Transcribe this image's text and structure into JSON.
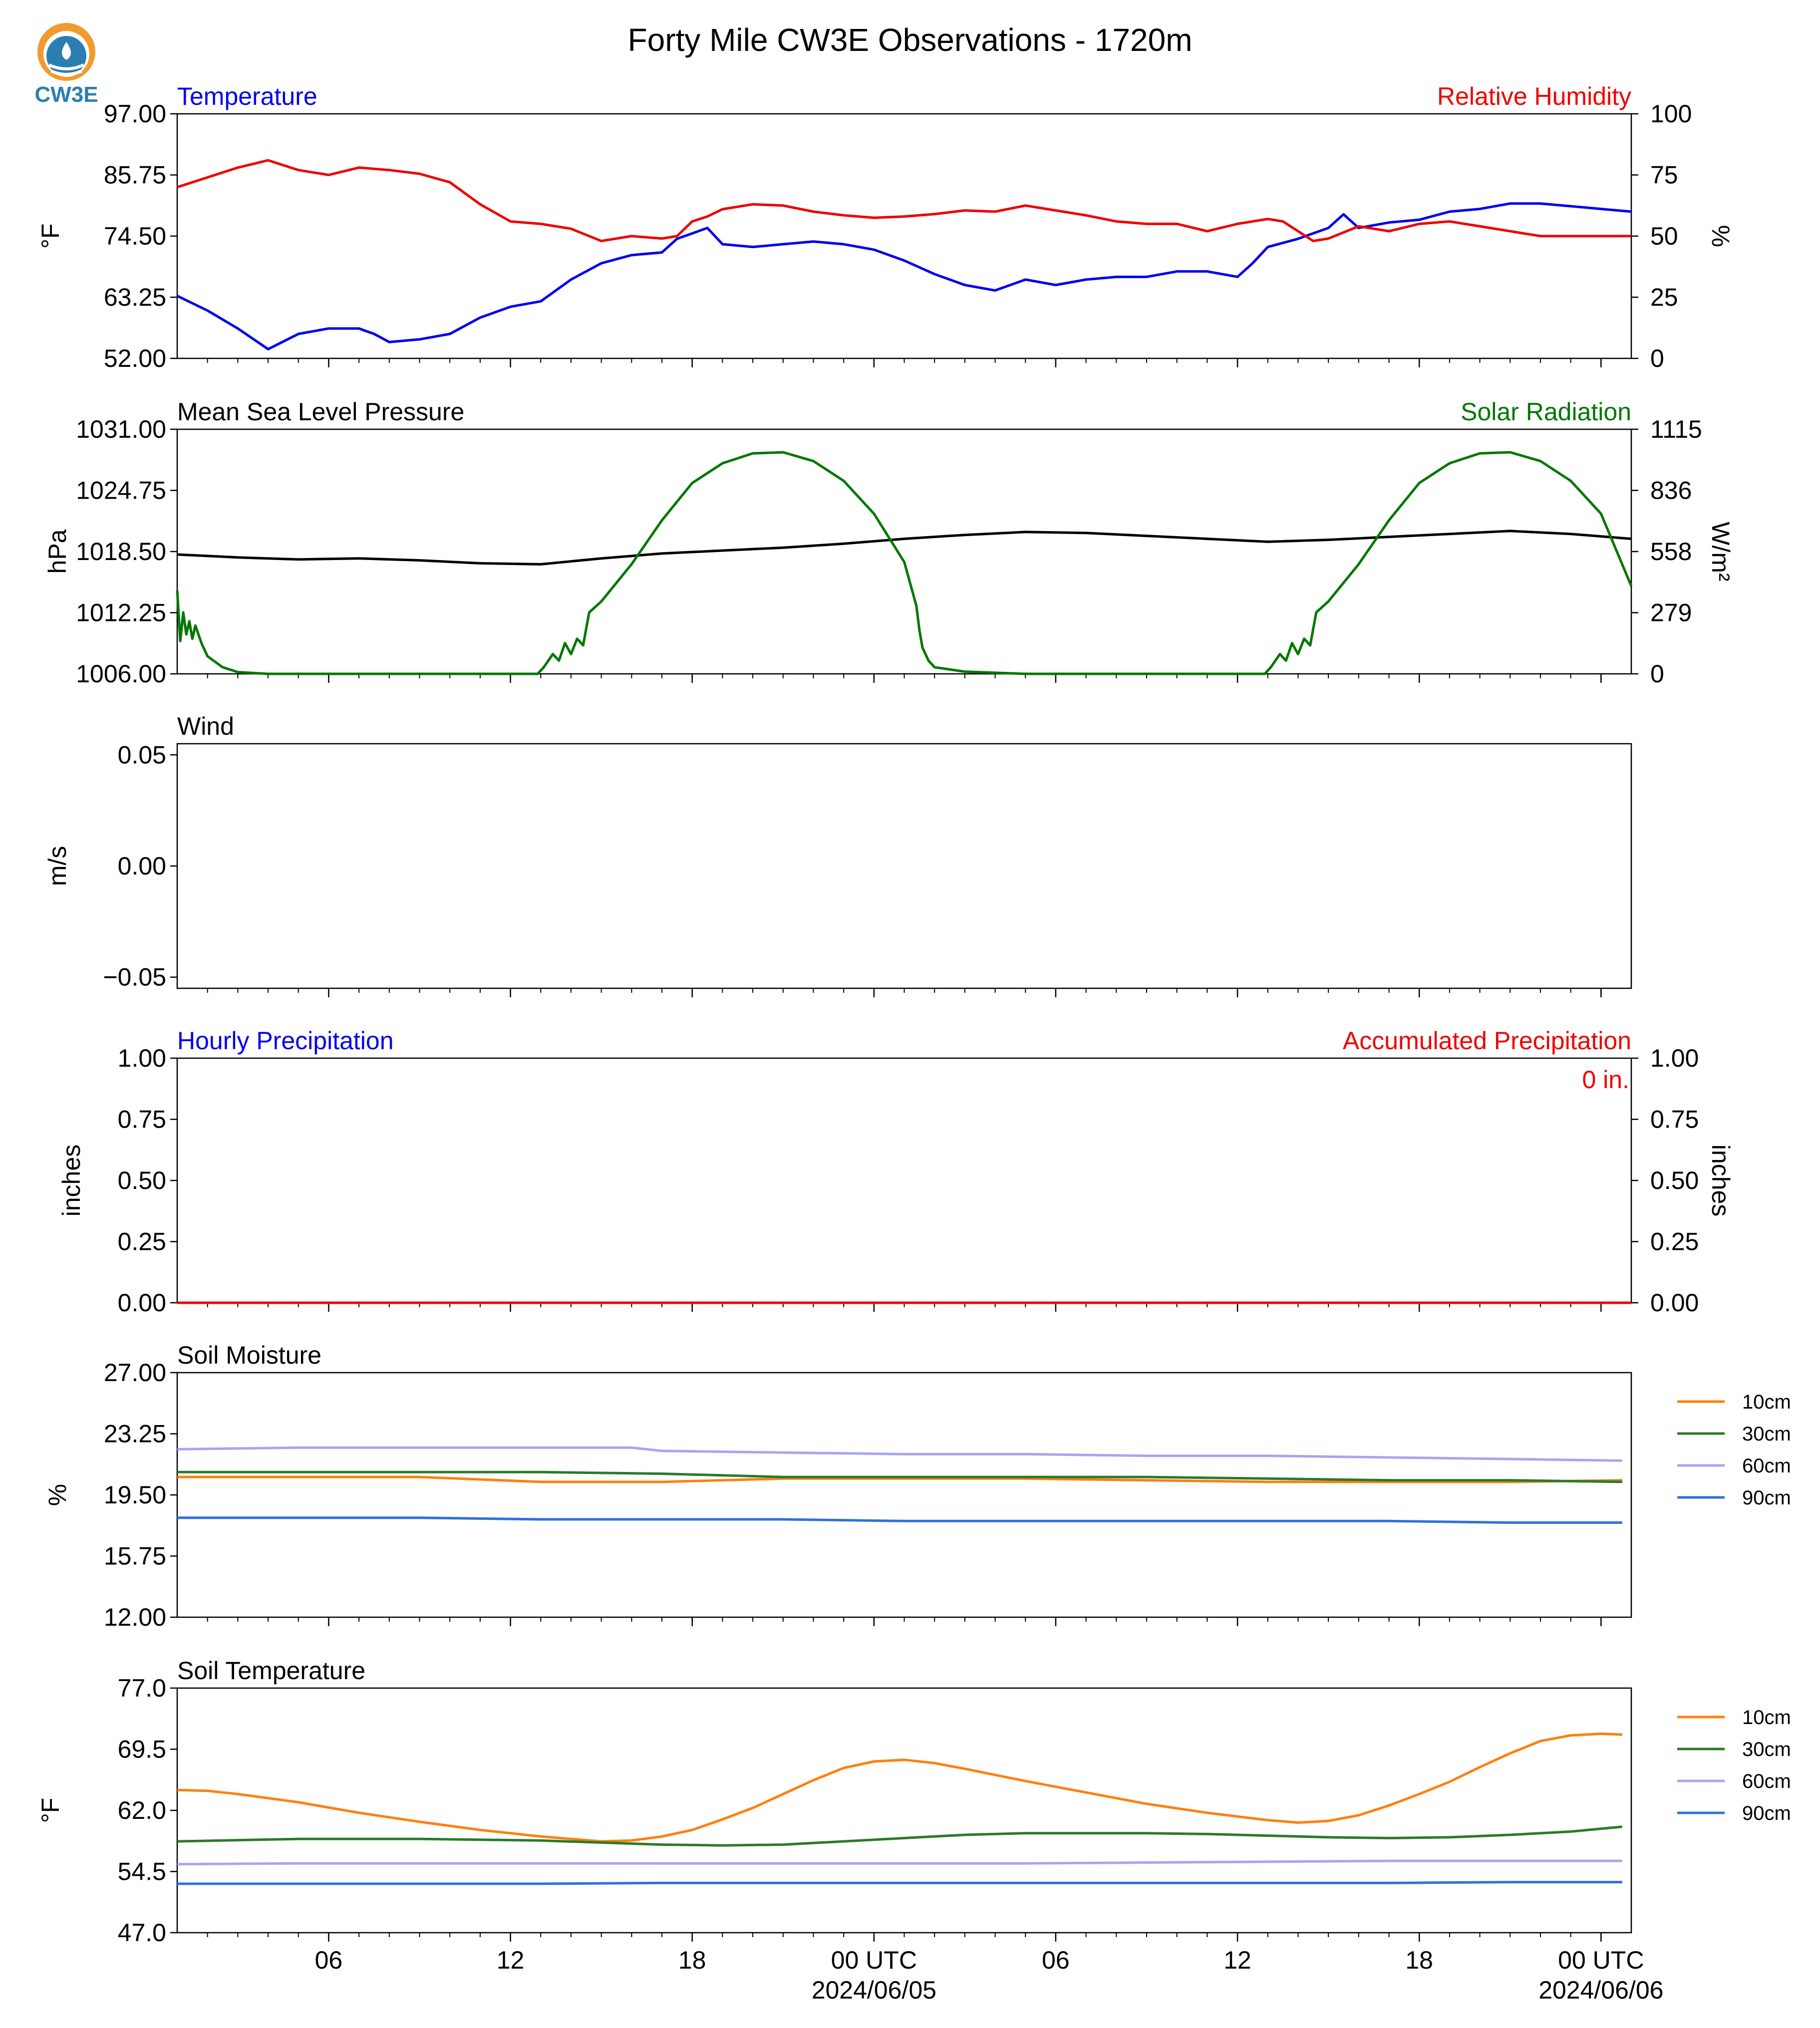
{
  "title": "Forty Mile CW3E Observations - 1720m",
  "logo": {
    "text": "CW3E",
    "icon": "cw3e-logo-icon",
    "colors": {
      "orange": "#f29a2e",
      "blue": "#2a7fb0"
    }
  },
  "colors": {
    "blue": "#0000ee",
    "red": "#ee0000",
    "green": "#007700",
    "black": "#000000",
    "soil_10cm": "#ff7f0e",
    "soil_30cm": "#2a7a2a",
    "soil_60cm": "#a6a6f0",
    "soil_90cm": "#2f6fe0"
  },
  "x_axis": {
    "unit": "hours",
    "range": [
      0,
      48
    ],
    "ticks": [
      {
        "x": 5,
        "label": "06",
        "date": ""
      },
      {
        "x": 11,
        "label": "12",
        "date": ""
      },
      {
        "x": 17,
        "label": "18",
        "date": ""
      },
      {
        "x": 23,
        "label": "00 UTC",
        "date": "2024/06/05"
      },
      {
        "x": 29,
        "label": "06",
        "date": ""
      },
      {
        "x": 35,
        "label": "12",
        "date": ""
      },
      {
        "x": 41,
        "label": "18",
        "date": ""
      },
      {
        "x": 47,
        "label": "00 UTC",
        "date": "2024/06/06"
      }
    ],
    "minor_step": 1
  },
  "chart_data": [
    {
      "type": "line",
      "title_left": "Temperature",
      "title_right": "Relative Humidity",
      "ylabel": "°F",
      "ylabel_right": "%",
      "ylim": [
        52,
        97
      ],
      "ylim_right": [
        0,
        100
      ],
      "yticks": [
        "52.00",
        "63.25",
        "74.50",
        "85.75",
        "97.00"
      ],
      "yticks_right": [
        "0",
        "25",
        "50",
        "75",
        "100"
      ],
      "series": [
        {
          "name": "Temperature",
          "axis": "left",
          "color": "blue",
          "x": [
            0,
            1,
            2,
            3,
            4,
            5,
            6,
            6.5,
            7,
            8,
            9,
            10,
            11,
            12,
            13,
            14,
            15,
            16,
            16.5,
            17,
            17.5,
            18,
            19,
            20,
            21,
            22,
            23,
            24,
            25,
            26,
            27,
            28,
            29,
            30,
            31,
            32,
            33,
            34,
            35,
            35.5,
            36,
            37,
            38,
            38.5,
            39,
            40,
            41,
            42,
            43,
            44,
            45,
            46,
            47,
            48
          ],
          "y": [
            63.5,
            60.8,
            57.5,
            53.7,
            56.5,
            57.5,
            57.5,
            56.5,
            55,
            55.5,
            56.5,
            59.5,
            61.5,
            62.5,
            66.5,
            69.5,
            71,
            71.5,
            74,
            75,
            76,
            73,
            72.5,
            73,
            73.5,
            73,
            72,
            70,
            67.5,
            65.5,
            64.5,
            66.5,
            65.5,
            66.5,
            67,
            67,
            68,
            68,
            67,
            69.5,
            72.5,
            74,
            76,
            78.5,
            76,
            77,
            77.5,
            79,
            79.5,
            80.5,
            80.5,
            80,
            79.5,
            79
          ]
        },
        {
          "name": "Relative Humidity",
          "axis": "right",
          "color": "red",
          "x": [
            0,
            1,
            2,
            3,
            4,
            5,
            6,
            7,
            8,
            9,
            10,
            11,
            12,
            13,
            14,
            15,
            16,
            16.5,
            17,
            17.5,
            18,
            19,
            20,
            21,
            22,
            23,
            24,
            25,
            26,
            27,
            28,
            29,
            30,
            31,
            32,
            33,
            34,
            35,
            36,
            36.5,
            37,
            37.5,
            38,
            39,
            40,
            41,
            42,
            43,
            44,
            45,
            46,
            47,
            48
          ],
          "y": [
            70,
            74,
            78,
            81,
            77,
            75,
            78,
            77,
            75.5,
            72,
            63,
            56,
            55,
            53,
            48,
            50,
            49,
            50,
            56,
            58,
            61,
            63,
            62.5,
            60,
            58.5,
            57.5,
            58,
            59,
            60.5,
            60,
            62.5,
            60.5,
            58.5,
            56,
            55,
            55,
            52,
            55,
            57,
            56,
            52,
            48,
            49,
            54,
            52,
            55,
            56,
            54,
            52,
            50,
            50,
            50,
            50
          ]
        }
      ]
    },
    {
      "type": "line",
      "title_left": "Mean Sea Level Pressure",
      "title_right": "Solar Radiation",
      "ylabel": "hPa",
      "ylabel_right": "W/m²",
      "ylim": [
        1006,
        1031
      ],
      "ylim_right": [
        0,
        1115
      ],
      "yticks": [
        "1006.00",
        "1012.25",
        "1018.50",
        "1024.75",
        "1031.00"
      ],
      "yticks_right": [
        "0",
        "279",
        "558",
        "836",
        "1115"
      ],
      "series": [
        {
          "name": "Mean Sea Level Pressure",
          "axis": "left",
          "color": "black",
          "x": [
            0,
            2,
            4,
            6,
            8,
            10,
            12,
            14,
            16,
            18,
            20,
            22,
            24,
            26,
            28,
            30,
            32,
            34,
            36,
            38,
            40,
            42,
            44,
            46,
            48
          ],
          "y": [
            1018.2,
            1017.9,
            1017.7,
            1017.8,
            1017.6,
            1017.3,
            1017.2,
            1017.8,
            1018.3,
            1018.6,
            1018.9,
            1019.3,
            1019.8,
            1020.2,
            1020.5,
            1020.4,
            1020.1,
            1019.8,
            1019.5,
            1019.7,
            1020,
            1020.3,
            1020.6,
            1020.3,
            1019.8
          ]
        },
        {
          "name": "Solar Radiation",
          "axis": "right",
          "color": "green",
          "x": [
            0,
            0.1,
            0.2,
            0.3,
            0.4,
            0.5,
            0.6,
            0.8,
            1,
            1.2,
            1.5,
            2,
            3,
            4,
            5,
            6,
            8,
            10,
            11.9,
            12.1,
            12.4,
            12.6,
            12.8,
            13,
            13.2,
            13.4,
            13.6,
            14,
            15,
            16,
            17,
            18,
            19,
            20,
            21,
            22,
            23,
            24,
            24.4,
            24.5,
            24.6,
            24.8,
            25,
            26,
            28,
            30,
            32,
            34,
            35.9,
            36.1,
            36.4,
            36.6,
            36.8,
            37,
            37.2,
            37.4,
            37.6,
            38,
            39,
            40,
            41,
            42,
            43,
            44,
            45,
            46,
            47,
            48
          ],
          "y": [
            380,
            150,
            280,
            180,
            240,
            160,
            220,
            140,
            80,
            60,
            30,
            8,
            0,
            0,
            0,
            0,
            0,
            0,
            0,
            30,
            90,
            60,
            140,
            90,
            160,
            130,
            280,
            330,
            500,
            700,
            870,
            960,
            1005,
            1010,
            970,
            880,
            730,
            510,
            310,
            200,
            120,
            60,
            30,
            10,
            0,
            0,
            0,
            0,
            0,
            30,
            90,
            60,
            140,
            90,
            160,
            130,
            280,
            330,
            500,
            700,
            870,
            960,
            1005,
            1010,
            970,
            880,
            730,
            400
          ]
        }
      ]
    },
    {
      "type": "line",
      "title_left": "Wind",
      "ylabel": "m/s",
      "ylim": [
        -0.055,
        0.055
      ],
      "yticks": [
        "−0.05",
        "0.00",
        "0.05"
      ],
      "ytick_values": [
        -0.05,
        0,
        0.05
      ],
      "series": []
    },
    {
      "type": "line",
      "title_left": "Hourly Precipitation",
      "title_right": "Accumulated Precipitation",
      "ylabel": "inches",
      "ylabel_right": "inches",
      "ylim": [
        0,
        1
      ],
      "ylim_right": [
        0,
        1
      ],
      "yticks": [
        "0.00",
        "0.25",
        "0.50",
        "0.75",
        "1.00"
      ],
      "yticks_right": [
        "0.00",
        "0.25",
        "0.50",
        "0.75",
        "1.00"
      ],
      "annotation": "0 in.",
      "series": [
        {
          "name": "Accumulated Precipitation",
          "axis": "right",
          "color": "red",
          "x": [
            0,
            48
          ],
          "y": [
            0,
            0
          ]
        }
      ]
    },
    {
      "type": "line",
      "title_left": "Soil Moisture",
      "ylabel": "%",
      "ylim": [
        12,
        27
      ],
      "yticks": [
        "12.00",
        "15.75",
        "19.50",
        "23.25",
        "27.00"
      ],
      "legend": [
        "10cm",
        "30cm",
        "60cm",
        "90cm"
      ],
      "series": [
        {
          "name": "10cm",
          "color": "soil_10cm",
          "x": [
            0,
            8,
            12,
            16,
            20,
            24,
            28,
            32,
            36,
            40,
            44,
            47.7
          ],
          "y": [
            20.6,
            20.6,
            20.3,
            20.3,
            20.5,
            20.5,
            20.5,
            20.4,
            20.3,
            20.3,
            20.3,
            20.4
          ]
        },
        {
          "name": "30cm",
          "color": "soil_30cm",
          "x": [
            0,
            8,
            12,
            16,
            20,
            24,
            28,
            32,
            36,
            40,
            44,
            47.7
          ],
          "y": [
            20.9,
            20.9,
            20.9,
            20.8,
            20.6,
            20.6,
            20.6,
            20.6,
            20.5,
            20.4,
            20.4,
            20.3
          ]
        },
        {
          "name": "60cm",
          "color": "soil_60cm",
          "x": [
            0,
            4,
            8,
            12,
            15,
            16,
            20,
            24,
            28,
            32,
            36,
            40,
            44,
            47.7
          ],
          "y": [
            22.3,
            22.4,
            22.4,
            22.4,
            22.4,
            22.2,
            22.1,
            22.0,
            22.0,
            21.9,
            21.9,
            21.8,
            21.7,
            21.6
          ]
        },
        {
          "name": "90cm",
          "color": "soil_90cm",
          "x": [
            0,
            4,
            8,
            12,
            16,
            20,
            24,
            28,
            32,
            36,
            40,
            44,
            47.7
          ],
          "y": [
            18.1,
            18.1,
            18.1,
            18.0,
            18.0,
            18.0,
            17.9,
            17.9,
            17.9,
            17.9,
            17.9,
            17.8,
            17.8
          ]
        }
      ]
    },
    {
      "type": "line",
      "title_left": "Soil Temperature",
      "ylabel": "°F",
      "ylim": [
        47,
        77
      ],
      "yticks": [
        "47.0",
        "54.5",
        "62.0",
        "69.5",
        "77.0"
      ],
      "legend": [
        "10cm",
        "30cm",
        "60cm",
        "90cm"
      ],
      "series": [
        {
          "name": "10cm",
          "color": "soil_10cm",
          "x": [
            0,
            1,
            2,
            4,
            6,
            8,
            10,
            12,
            14,
            15,
            16,
            17,
            18,
            19,
            20,
            21,
            22,
            23,
            24,
            25,
            26,
            28,
            30,
            32,
            34,
            36,
            37,
            38,
            39,
            40,
            41,
            42,
            43,
            44,
            45,
            46,
            47,
            47.7
          ],
          "y": [
            64.5,
            64.4,
            64.0,
            63.0,
            61.7,
            60.6,
            59.6,
            58.8,
            58.2,
            58.3,
            58.8,
            59.6,
            60.9,
            62.3,
            64.0,
            65.7,
            67.2,
            68.0,
            68.2,
            67.8,
            67.1,
            65.6,
            64.2,
            62.8,
            61.7,
            60.8,
            60.5,
            60.7,
            61.4,
            62.6,
            64.0,
            65.5,
            67.3,
            69.0,
            70.5,
            71.2,
            71.4,
            71.3
          ]
        },
        {
          "name": "30cm",
          "color": "soil_30cm",
          "x": [
            0,
            4,
            8,
            12,
            16,
            18,
            20,
            22,
            24,
            26,
            28,
            30,
            32,
            34,
            36,
            38,
            40,
            42,
            44,
            46,
            47.7
          ],
          "y": [
            58.2,
            58.5,
            58.5,
            58.3,
            57.8,
            57.7,
            57.8,
            58.2,
            58.6,
            59.0,
            59.2,
            59.2,
            59.2,
            59.1,
            58.9,
            58.7,
            58.6,
            58.7,
            59.0,
            59.4,
            60.0
          ]
        },
        {
          "name": "60cm",
          "color": "soil_60cm",
          "x": [
            0,
            4,
            8,
            12,
            16,
            20,
            24,
            28,
            32,
            36,
            40,
            44,
            47.7
          ],
          "y": [
            55.4,
            55.5,
            55.5,
            55.5,
            55.5,
            55.5,
            55.5,
            55.5,
            55.6,
            55.7,
            55.8,
            55.8,
            55.8
          ]
        },
        {
          "name": "90cm",
          "color": "soil_90cm",
          "x": [
            0,
            4,
            8,
            12,
            16,
            20,
            24,
            28,
            32,
            36,
            40,
            44,
            47.7
          ],
          "y": [
            53.0,
            53.0,
            53.0,
            53.0,
            53.1,
            53.1,
            53.1,
            53.1,
            53.1,
            53.1,
            53.1,
            53.2,
            53.2
          ]
        }
      ]
    }
  ]
}
